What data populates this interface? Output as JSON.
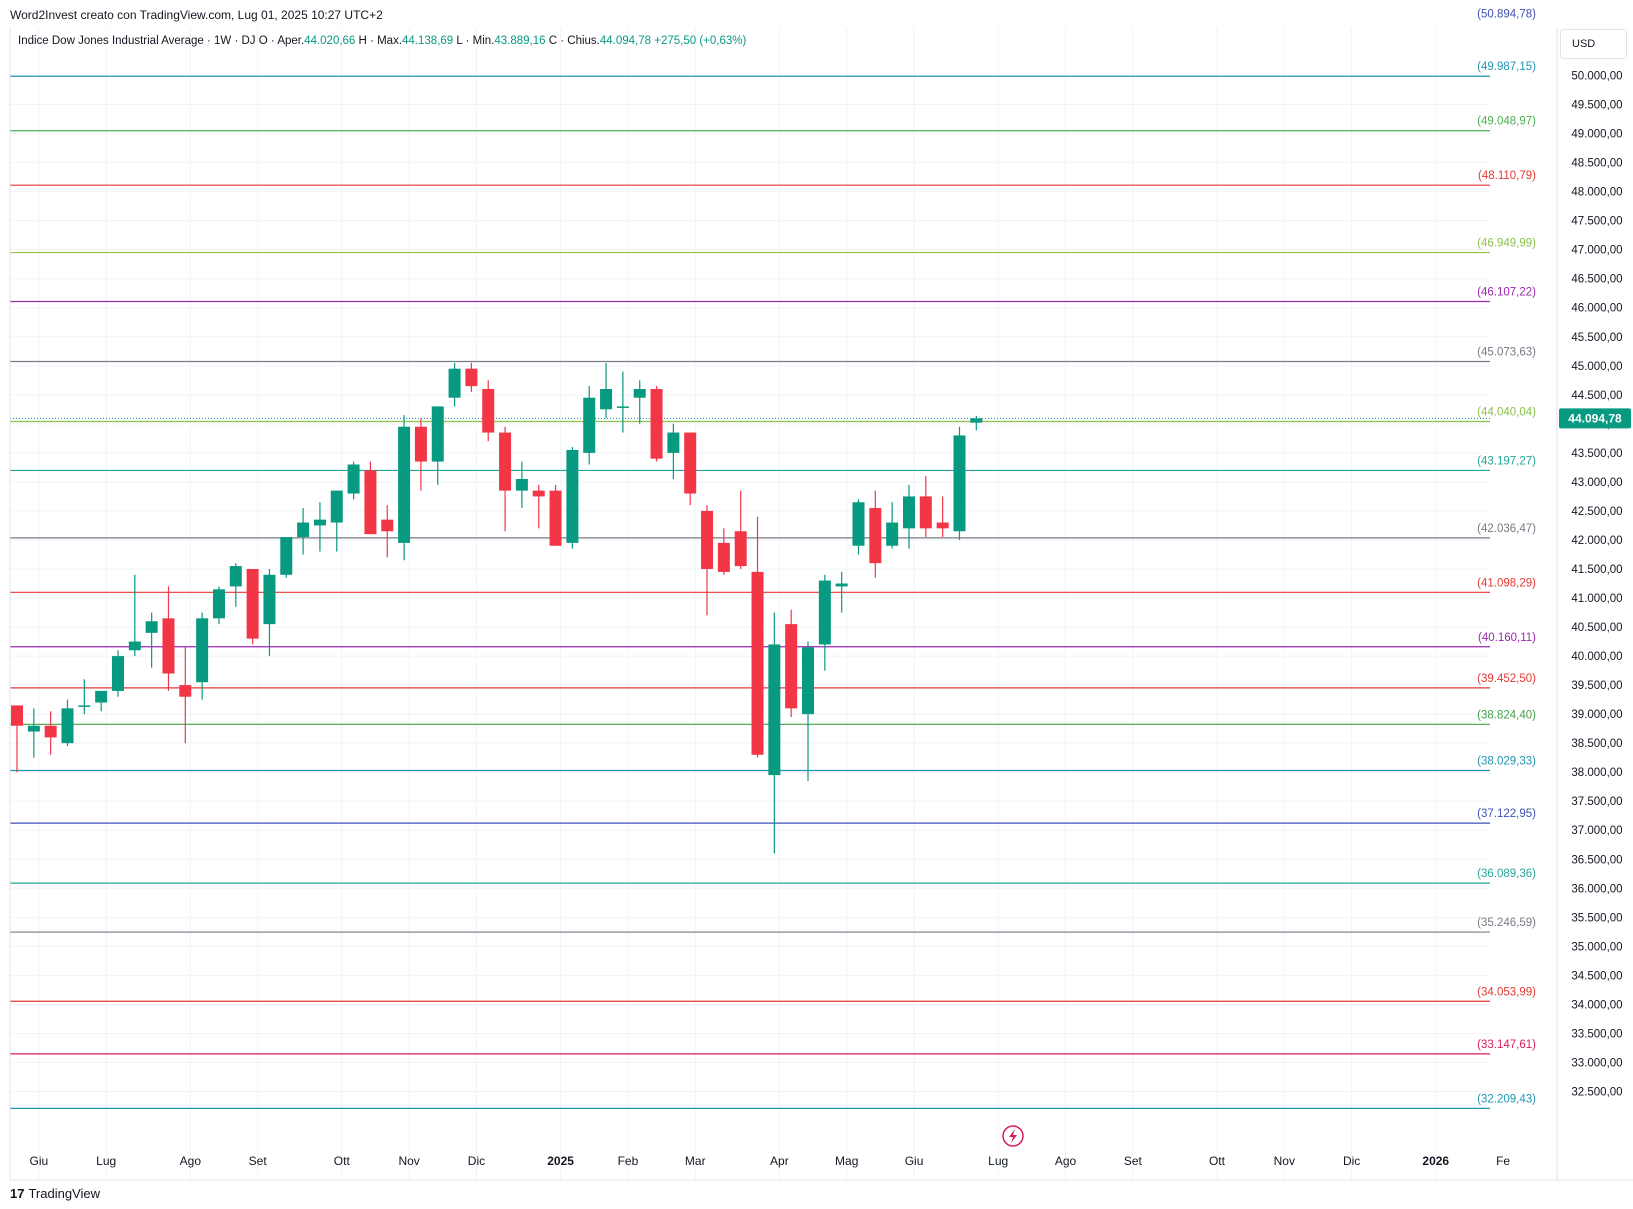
{
  "header": {
    "attribution": "Word2Invest creato con TradingView.com, Lug 01, 2025 10:27 UTC+2"
  },
  "legend": {
    "symbol": "Indice Dow Jones Industrial Average · 1W · DJ",
    "open_label": "O",
    "open_prefix": "Aper.",
    "open_value": "44.020,66",
    "high_label": "H",
    "high_prefix": "Max.",
    "high_value": "44.138,69",
    "low_label": "L",
    "low_prefix": "Min.",
    "low_value": "43.889,16",
    "close_label": "C",
    "close_prefix": "Chius.",
    "close_value": "44.094,78",
    "change_value": "+275,50 (+0,63%)"
  },
  "price_axis": {
    "currency": "USD",
    "current_price_label": "44.094,78",
    "current_price_color": "#089981"
  },
  "footer": {
    "brand": "TradingView",
    "brand_mark": "17"
  },
  "colors": {
    "up": "#089981",
    "down": "#f23645",
    "grid": "#f0f3fa",
    "axis_text": "#131722"
  },
  "chart_data": {
    "type": "candlestick",
    "title": "Indice Dow Jones Industrial Average · 1W · DJ",
    "timeframe": "1W",
    "ylim": [
      32300,
      50700
    ],
    "y_ticks": [
      32500,
      33000,
      33500,
      34000,
      34500,
      35000,
      35500,
      36000,
      36500,
      37000,
      37500,
      38000,
      38500,
      39000,
      39500,
      40000,
      40500,
      41000,
      41500,
      42000,
      42500,
      43000,
      43500,
      44000,
      44500,
      45000,
      45500,
      46000,
      46500,
      47000,
      47500,
      48000,
      48500,
      49000,
      49500,
      50000
    ],
    "y_tick_labels": [
      "32.500,00",
      "33.000,00",
      "33.500,00",
      "34.000,00",
      "34.500,00",
      "35.000,00",
      "35.500,00",
      "36.000,00",
      "36.500,00",
      "37.000,00",
      "37.500,00",
      "38.000,00",
      "38.500,00",
      "39.000,00",
      "39.500,00",
      "40.000,00",
      "40.500,00",
      "41.000,00",
      "41.500,00",
      "42.000,00",
      "42.500,00",
      "43.000,00",
      "43.500,00",
      "44.000,00",
      "44.500,00",
      "45.000,00",
      "45.500,00",
      "46.000,00",
      "46.500,00",
      "47.000,00",
      "47.500,00",
      "48.000,00",
      "48.500,00",
      "49.000,00",
      "49.500,00",
      "50.000,00"
    ],
    "x_labels": [
      {
        "label": "Giu",
        "week": 1.3,
        "bold": false
      },
      {
        "label": "Lug",
        "week": 5.3,
        "bold": false
      },
      {
        "label": "Ago",
        "week": 10.3,
        "bold": false
      },
      {
        "label": "Set",
        "week": 14.3,
        "bold": false
      },
      {
        "label": "Ott",
        "week": 19.3,
        "bold": false
      },
      {
        "label": "Nov",
        "week": 23.3,
        "bold": false
      },
      {
        "label": "Dic",
        "week": 27.3,
        "bold": false
      },
      {
        "label": "2025",
        "week": 32.3,
        "bold": true
      },
      {
        "label": "Feb",
        "week": 36.3,
        "bold": false
      },
      {
        "label": "Mar",
        "week": 40.3,
        "bold": false
      },
      {
        "label": "Apr",
        "week": 45.3,
        "bold": false
      },
      {
        "label": "Mag",
        "week": 49.3,
        "bold": false
      },
      {
        "label": "Giu",
        "week": 53.3,
        "bold": false
      },
      {
        "label": "Lug",
        "week": 58.3,
        "bold": false
      },
      {
        "label": "Ago",
        "week": 62.3,
        "bold": false
      },
      {
        "label": "Set",
        "week": 66.3,
        "bold": false
      },
      {
        "label": "Ott",
        "week": 71.3,
        "bold": false
      },
      {
        "label": "Nov",
        "week": 75.3,
        "bold": false
      },
      {
        "label": "Dic",
        "week": 79.3,
        "bold": false
      },
      {
        "label": "2026",
        "week": 84.3,
        "bold": true
      },
      {
        "label": "Fe",
        "week": 88.3,
        "bold": false
      }
    ],
    "candles": [
      {
        "o": 39150,
        "h": 39150,
        "l": 38000,
        "c": 38800
      },
      {
        "o": 38700,
        "h": 39100,
        "l": 38250,
        "c": 38800
      },
      {
        "o": 38800,
        "h": 39050,
        "l": 38300,
        "c": 38600
      },
      {
        "o": 38500,
        "h": 39250,
        "l": 38450,
        "c": 39100
      },
      {
        "o": 39150,
        "h": 39600,
        "l": 39000,
        "c": 39150
      },
      {
        "o": 39200,
        "h": 39350,
        "l": 39050,
        "c": 39400
      },
      {
        "o": 39400,
        "h": 40100,
        "l": 39300,
        "c": 40000
      },
      {
        "o": 40100,
        "h": 41400,
        "l": 40000,
        "c": 40250
      },
      {
        "o": 40400,
        "h": 40750,
        "l": 39800,
        "c": 40600
      },
      {
        "o": 40650,
        "h": 41200,
        "l": 39400,
        "c": 39700
      },
      {
        "o": 39500,
        "h": 40150,
        "l": 38500,
        "c": 39300
      },
      {
        "o": 39550,
        "h": 40750,
        "l": 39250,
        "c": 40650
      },
      {
        "o": 40650,
        "h": 41200,
        "l": 40550,
        "c": 41150
      },
      {
        "o": 41200,
        "h": 41600,
        "l": 40850,
        "c": 41550
      },
      {
        "o": 41500,
        "h": 41500,
        "l": 40200,
        "c": 40300
      },
      {
        "o": 40550,
        "h": 41500,
        "l": 40000,
        "c": 41400
      },
      {
        "o": 41400,
        "h": 42000,
        "l": 41350,
        "c": 42050
      },
      {
        "o": 42050,
        "h": 42550,
        "l": 41750,
        "c": 42300
      },
      {
        "o": 42250,
        "h": 42650,
        "l": 41800,
        "c": 42350
      },
      {
        "o": 42300,
        "h": 42850,
        "l": 41800,
        "c": 42850
      },
      {
        "o": 42800,
        "h": 43350,
        "l": 42700,
        "c": 43300
      },
      {
        "o": 43200,
        "h": 43350,
        "l": 42100,
        "c": 42100
      },
      {
        "o": 42350,
        "h": 42600,
        "l": 41700,
        "c": 42150
      },
      {
        "o": 41950,
        "h": 44150,
        "l": 41650,
        "c": 43950
      },
      {
        "o": 43950,
        "h": 44100,
        "l": 42850,
        "c": 43350
      },
      {
        "o": 43350,
        "h": 44300,
        "l": 42950,
        "c": 44300
      },
      {
        "o": 44450,
        "h": 45050,
        "l": 44300,
        "c": 44950
      },
      {
        "o": 44950,
        "h": 45050,
        "l": 44550,
        "c": 44650
      },
      {
        "o": 44600,
        "h": 44750,
        "l": 43700,
        "c": 43850
      },
      {
        "o": 43850,
        "h": 43950,
        "l": 42150,
        "c": 42850
      },
      {
        "o": 42850,
        "h": 43350,
        "l": 42550,
        "c": 43050
      },
      {
        "o": 42850,
        "h": 42950,
        "l": 42200,
        "c": 42750
      },
      {
        "o": 42850,
        "h": 42950,
        "l": 41900,
        "c": 41900
      },
      {
        "o": 41950,
        "h": 43600,
        "l": 41850,
        "c": 43550
      },
      {
        "o": 43500,
        "h": 44650,
        "l": 43300,
        "c": 44450
      },
      {
        "o": 44250,
        "h": 45050,
        "l": 44100,
        "c": 44600
      },
      {
        "o": 44300,
        "h": 44900,
        "l": 43850,
        "c": 44300
      },
      {
        "o": 44450,
        "h": 44750,
        "l": 44000,
        "c": 44600
      },
      {
        "o": 44600,
        "h": 44650,
        "l": 43350,
        "c": 43400
      },
      {
        "o": 43500,
        "h": 44000,
        "l": 43050,
        "c": 43850
      },
      {
        "o": 43850,
        "h": 43850,
        "l": 42600,
        "c": 42800
      },
      {
        "o": 42500,
        "h": 42600,
        "l": 40700,
        "c": 41500
      },
      {
        "o": 41950,
        "h": 42200,
        "l": 41400,
        "c": 41450
      },
      {
        "o": 42150,
        "h": 42850,
        "l": 41500,
        "c": 41550
      },
      {
        "o": 41450,
        "h": 42400,
        "l": 38250,
        "c": 38300
      },
      {
        "o": 37950,
        "h": 40750,
        "l": 36600,
        "c": 40200
      },
      {
        "o": 40550,
        "h": 40800,
        "l": 38950,
        "c": 39100
      },
      {
        "o": 39000,
        "h": 40250,
        "l": 37850,
        "c": 40150
      },
      {
        "o": 40200,
        "h": 41400,
        "l": 39750,
        "c": 41300
      },
      {
        "o": 41200,
        "h": 41450,
        "l": 40750,
        "c": 41250
      },
      {
        "o": 41900,
        "h": 42700,
        "l": 41750,
        "c": 42650
      },
      {
        "o": 42550,
        "h": 42850,
        "l": 41350,
        "c": 41600
      },
      {
        "o": 41900,
        "h": 42650,
        "l": 41850,
        "c": 42300
      },
      {
        "o": 42200,
        "h": 42950,
        "l": 41850,
        "c": 42750
      },
      {
        "o": 42750,
        "h": 43100,
        "l": 42050,
        "c": 42200
      },
      {
        "o": 42300,
        "h": 42750,
        "l": 42050,
        "c": 42200
      },
      {
        "o": 42150,
        "h": 43950,
        "l": 42000,
        "c": 43800
      },
      {
        "o": 44020.66,
        "h": 44138.69,
        "l": 43889.16,
        "c": 44094.78
      }
    ],
    "levels": [
      {
        "value": 50894.78,
        "label": "(50.894,78)",
        "color": "#3f51b5",
        "dotted": false
      },
      {
        "value": 49987.15,
        "label": "(49.987,15)",
        "color": "#2196b3",
        "dotted": false
      },
      {
        "value": 49048.97,
        "label": "(49.048,97)",
        "color": "#4caf50",
        "dotted": false
      },
      {
        "value": 48110.79,
        "label": "(48.110,79)",
        "color": "#e53935",
        "dotted": false
      },
      {
        "value": 46949.99,
        "label": "(46.949,99)",
        "color": "#8bc34a",
        "dotted": false
      },
      {
        "value": 46107.22,
        "label": "(46.107,22)",
        "color": "#9c27b0",
        "dotted": false
      },
      {
        "value": 45073.63,
        "label": "(45.073,63)",
        "color": "#787b86",
        "dotted": false
      },
      {
        "value": 44040.04,
        "label": "(44.040,04)",
        "color": "#8bc34a",
        "dotted": false
      },
      {
        "value": 43197.27,
        "label": "(43.197,27)",
        "color": "#26a69a",
        "dotted": false
      },
      {
        "value": 42036.47,
        "label": "(42.036,47)",
        "color": "#787b86",
        "dotted": false
      },
      {
        "value": 41098.29,
        "label": "(41.098,29)",
        "color": "#e53935",
        "dotted": false
      },
      {
        "value": 40160.11,
        "label": "(40.160,11)",
        "color": "#9c27b0",
        "dotted": false
      },
      {
        "value": 39452.5,
        "label": "(39.452,50)",
        "color": "#e53935",
        "dotted": false
      },
      {
        "value": 38824.4,
        "label": "(38.824,40)",
        "color": "#43a047",
        "dotted": false
      },
      {
        "value": 38029.33,
        "label": "(38.029,33)",
        "color": "#2196b3",
        "dotted": false
      },
      {
        "value": 37122.95,
        "label": "(37.122,95)",
        "color": "#3f51b5",
        "dotted": false
      },
      {
        "value": 36089.36,
        "label": "(36.089,36)",
        "color": "#26a69a",
        "dotted": false
      },
      {
        "value": 35246.59,
        "label": "(35.246,59)",
        "color": "#787b86",
        "dotted": false
      },
      {
        "value": 34053.99,
        "label": "(34.053,99)",
        "color": "#e53935",
        "dotted": false
      },
      {
        "value": 33147.61,
        "label": "(33.147,61)",
        "color": "#d81b60",
        "dotted": false
      },
      {
        "value": 32209.43,
        "label": "(32.209,43)",
        "color": "#2196b3",
        "dotted": false
      }
    ]
  }
}
